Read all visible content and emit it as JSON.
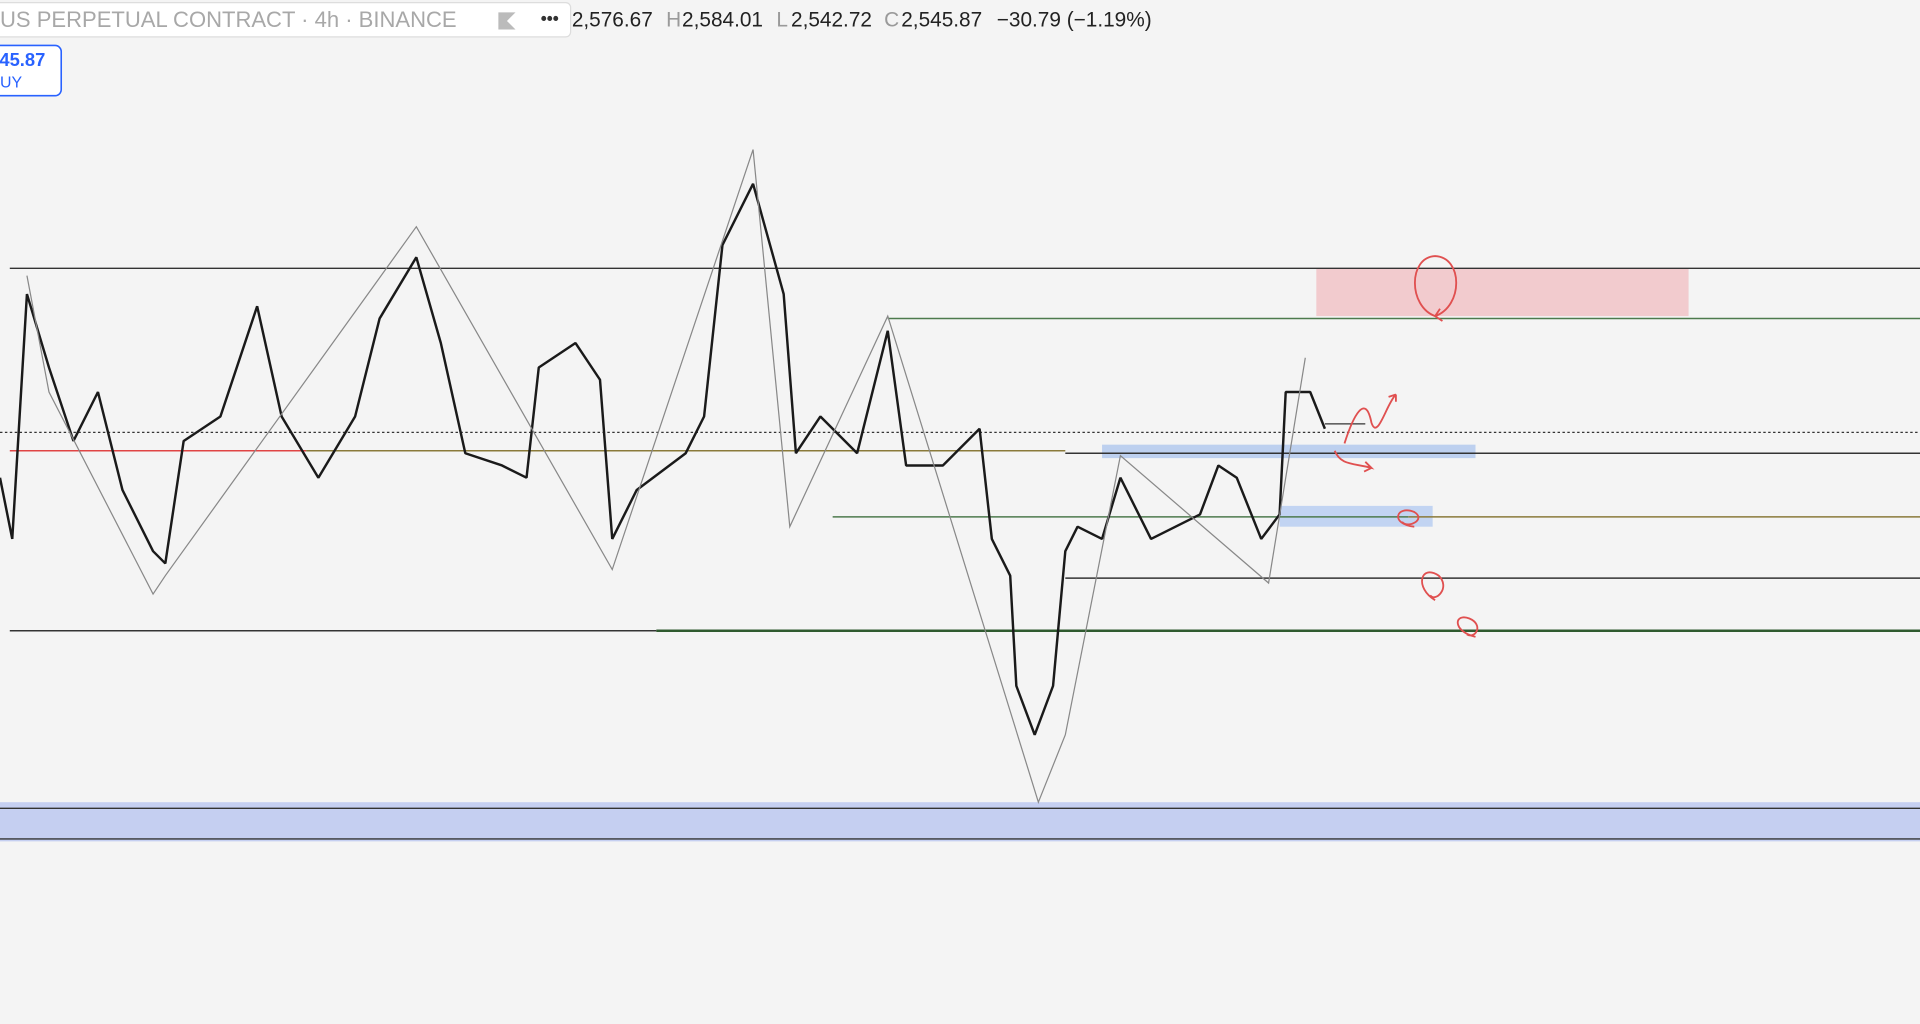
{
  "header": {
    "symbol": "US PERPETUAL CONTRACT · 4h · BINANCE",
    "menu": "•••",
    "ohlc": {
      "open": "2,576.67",
      "high_label": "H",
      "high": "2,584.01",
      "low_label": "L",
      "low": "2,542.72",
      "close_label": "C",
      "close": "2,545.87",
      "change": "−30.79 (−1.19%)"
    }
  },
  "order_button": {
    "price": "45.87",
    "side": "UY"
  }
}
